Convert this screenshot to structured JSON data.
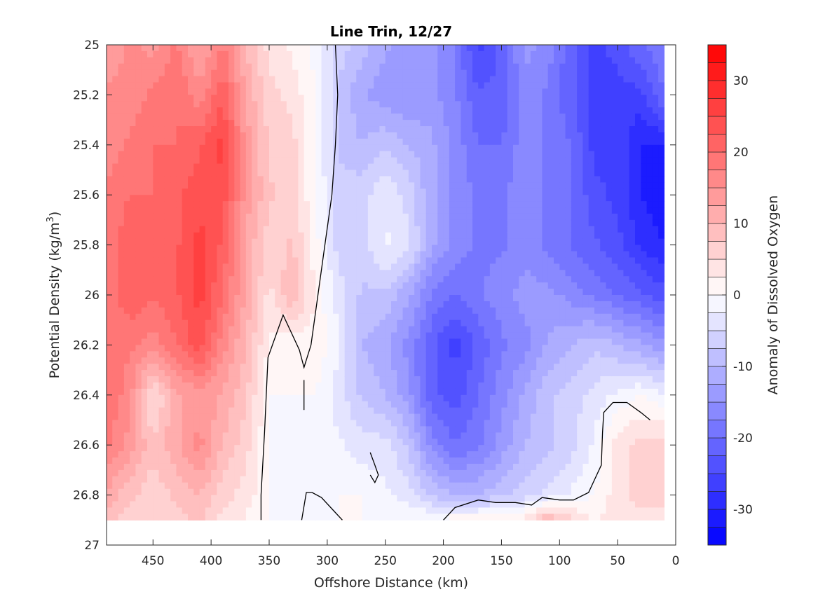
{
  "chart_data": {
    "type": "heatmap",
    "subtype": "filled-contour",
    "title": "Line Trin, 12/27",
    "xlabel": "Offshore Distance (km)",
    "ylabel_main": "Potential Density (kg/m",
    "ylabel_exp": "3",
    "ylabel_close": ")",
    "colorbar_label": "Anomaly of Dissolved Oxygen",
    "x_axis": {
      "range": [
        0,
        490
      ],
      "reversed": true,
      "ticks": [
        450,
        400,
        350,
        300,
        250,
        200,
        150,
        100,
        50,
        0
      ],
      "tick_labels": [
        "450",
        "400",
        "350",
        "300",
        "250",
        "200",
        "150",
        "100",
        "50",
        "0"
      ]
    },
    "y_axis": {
      "range": [
        25,
        27
      ],
      "reversed": true,
      "ticks": [
        25,
        25.2,
        25.4,
        25.6,
        25.8,
        26,
        26.2,
        26.4,
        26.6,
        26.8,
        27
      ],
      "tick_labels": [
        "25",
        "25.2",
        "25.4",
        "25.6",
        "25.8",
        "26",
        "26.2",
        "26.4",
        "26.6",
        "26.8",
        "27"
      ]
    },
    "colorbar": {
      "range": [
        -35,
        35
      ],
      "ticks": [
        30,
        20,
        10,
        0,
        -10,
        -20,
        -30
      ],
      "tick_labels": [
        "30",
        "20",
        "10",
        "0",
        "-10",
        "-20",
        "-30"
      ],
      "levels": 28,
      "color_high": "#ff0000",
      "color_zero": "#ffffff",
      "color_low": "#0000ff"
    },
    "data_extent": {
      "x": [
        10,
        490
      ],
      "y": [
        25,
        26.9
      ]
    },
    "grid": {
      "x": [
        490,
        470,
        450,
        430,
        410,
        390,
        370,
        350,
        330,
        310,
        290,
        270,
        250,
        230,
        210,
        190,
        170,
        150,
        130,
        110,
        90,
        70,
        50,
        30,
        10
      ],
      "y": [
        25.0,
        25.2,
        25.4,
        25.6,
        25.8,
        26.0,
        26.2,
        26.4,
        26.6,
        26.8,
        26.9
      ],
      "values": [
        [
          12,
          16,
          14,
          18,
          12,
          18,
          10,
          4,
          2,
          -1,
          -6,
          -9,
          -12,
          -14,
          -14,
          -18,
          -26,
          -22,
          -14,
          -16,
          -22,
          -26,
          -24,
          -20,
          -18
        ],
        [
          16,
          16,
          18,
          20,
          16,
          22,
          12,
          6,
          4,
          0,
          -8,
          -12,
          -14,
          -15,
          -14,
          -17,
          -22,
          -22,
          -16,
          -18,
          -22,
          -26,
          -26,
          -26,
          -20
        ],
        [
          16,
          18,
          20,
          20,
          22,
          26,
          14,
          7,
          6,
          0,
          -8,
          -10,
          -8,
          -10,
          -12,
          -16,
          -20,
          -20,
          -16,
          -18,
          -20,
          -26,
          -26,
          -30,
          -30
        ],
        [
          18,
          20,
          20,
          22,
          24,
          24,
          14,
          8,
          6,
          0,
          -6,
          -6,
          -3,
          -6,
          -12,
          -16,
          -18,
          -18,
          -16,
          -18,
          -20,
          -24,
          -26,
          -30,
          -32
        ],
        [
          18,
          22,
          20,
          22,
          26,
          22,
          12,
          6,
          8,
          1,
          -6,
          -6,
          -2,
          -4,
          -12,
          -16,
          -18,
          -18,
          -16,
          -18,
          -20,
          -22,
          -24,
          -28,
          -30
        ],
        [
          18,
          22,
          20,
          22,
          26,
          20,
          12,
          4,
          10,
          2,
          -4,
          -8,
          -8,
          -12,
          -18,
          -20,
          -18,
          -16,
          -14,
          -14,
          -16,
          -18,
          -20,
          -22,
          -24
        ],
        [
          18,
          18,
          16,
          20,
          24,
          16,
          10,
          2,
          0,
          2,
          -2,
          -10,
          -12,
          -16,
          -22,
          -26,
          -22,
          -18,
          -16,
          -12,
          -10,
          -8,
          -10,
          -12,
          -14
        ],
        [
          20,
          16,
          4,
          12,
          14,
          12,
          8,
          0,
          0,
          0,
          -4,
          -8,
          -10,
          -14,
          -22,
          -24,
          -20,
          -16,
          -12,
          -8,
          -6,
          -4,
          -2,
          0,
          -2
        ],
        [
          18,
          14,
          8,
          12,
          16,
          10,
          6,
          0,
          -2,
          -2,
          -2,
          -4,
          -4,
          -8,
          -16,
          -20,
          -18,
          -14,
          -10,
          -8,
          -6,
          -2,
          4,
          6,
          6
        ],
        [
          12,
          8,
          6,
          8,
          10,
          6,
          4,
          0,
          -2,
          -2,
          0,
          0,
          -2,
          -4,
          -8,
          -10,
          -10,
          -8,
          -6,
          -4,
          -2,
          0,
          4,
          6,
          6
        ],
        [
          8,
          6,
          6,
          6,
          8,
          4,
          2,
          0,
          0,
          0,
          0,
          0,
          0,
          0,
          0,
          2,
          2,
          2,
          4,
          10,
          6,
          2,
          4,
          4,
          4
        ]
      ]
    },
    "zero_contours": [
      {
        "x": [
          293,
          291,
          293,
          296,
          302,
          308,
          314,
          320,
          324,
          338,
          351,
          354,
          357,
          357
        ],
        "y": [
          25.0,
          25.2,
          25.4,
          25.6,
          25.8,
          26.0,
          26.2,
          26.29,
          26.22,
          26.08,
          26.25,
          26.55,
          26.8,
          26.9
        ]
      },
      {
        "x": [
          320,
          320
        ],
        "y": [
          26.34,
          26.46
        ]
      },
      {
        "x": [
          322,
          318,
          313,
          305,
          295,
          287
        ],
        "y": [
          26.9,
          26.79,
          26.79,
          26.81,
          26.86,
          26.9
        ]
      },
      {
        "x": [
          263,
          259,
          256,
          259,
          263
        ],
        "y": [
          26.63,
          26.68,
          26.72,
          26.75,
          26.72
        ]
      },
      {
        "x": [
          200,
          190,
          170,
          155,
          138,
          124,
          115,
          100,
          88,
          75,
          68,
          64,
          63,
          62,
          54,
          42,
          30,
          22
        ],
        "y": [
          26.9,
          26.85,
          26.82,
          26.83,
          26.83,
          26.84,
          26.81,
          26.82,
          26.82,
          26.79,
          26.72,
          26.68,
          26.55,
          26.47,
          26.43,
          26.43,
          26.47,
          26.5
        ]
      }
    ]
  }
}
